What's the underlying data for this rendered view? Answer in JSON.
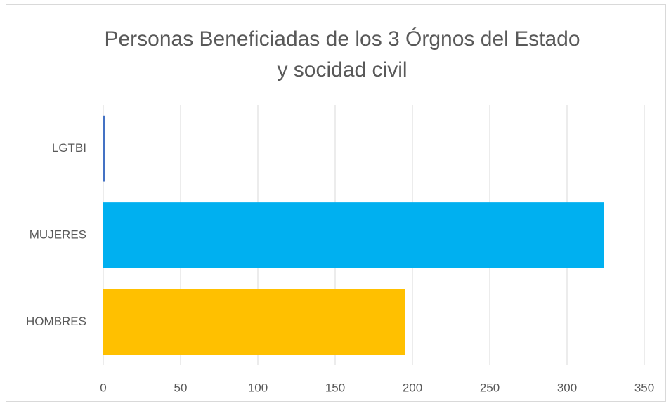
{
  "chart_data": {
    "type": "barh",
    "title": [
      "Personas Beneficiadas de los 3 Órgnos del Estado",
      "y socidad civil"
    ],
    "categories": [
      "HOMBRES",
      "MUJERES",
      "LGTBI"
    ],
    "values": [
      195,
      324,
      1
    ],
    "colors": [
      "#FFC000",
      "#00B0F0",
      "#4472C4"
    ],
    "xlim": [
      0,
      350
    ],
    "xticks": [
      0,
      50,
      100,
      150,
      200,
      250,
      300,
      350
    ],
    "grid": true
  }
}
